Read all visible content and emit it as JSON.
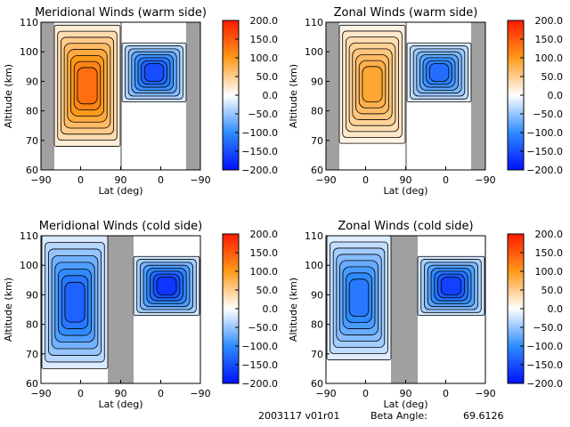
{
  "footer": {
    "date_version": "2003117 v01r01",
    "beta_label": "Beta Angle:",
    "beta_value": "69.6126"
  },
  "colorbar": {
    "ticks": [
      "200.0",
      "150.0",
      "100.0",
      "50.0",
      "0.0",
      "-50.0",
      "-100.0",
      "-150.0",
      "-200.0"
    ],
    "min": -200,
    "max": 200,
    "colors": {
      "max": "#ff1a00",
      "mid_high": "#ff9a1a",
      "zero": "#ffffff",
      "mid_low": "#2f8cff",
      "min": "#0010ff"
    }
  },
  "chart_data": [
    {
      "type": "heatmap",
      "title": "Meridional Winds (warm side)",
      "xlabel": "Lat (deg)",
      "ylabel": "Altitude (km)",
      "xticks": [
        "-90",
        "0",
        "90",
        "0",
        "-90"
      ],
      "yticks": [
        "60",
        "70",
        "80",
        "90",
        "100",
        "110"
      ],
      "ylim": [
        60,
        110
      ],
      "left_panel": {
        "range": "-90 to 90",
        "peak_value": 150,
        "sign": "positive",
        "alt_range": [
          68,
          109
        ]
      },
      "right_panel": {
        "range": "90 to -90",
        "peak_value": -170,
        "sign": "negative",
        "alt_range": [
          83,
          103
        ]
      }
    },
    {
      "type": "heatmap",
      "title": "Zonal Winds (warm side)",
      "xlabel": "Lat (deg)",
      "ylabel": "Altitude (km)",
      "xticks": [
        "-90",
        "0",
        "90",
        "0",
        "-90"
      ],
      "yticks": [
        "60",
        "70",
        "80",
        "90",
        "100",
        "110"
      ],
      "ylim": [
        60,
        110
      ],
      "left_panel": {
        "range": "-90 to 90",
        "peak_value": 100,
        "sign": "positive",
        "alt_range": [
          69,
          109
        ]
      },
      "right_panel": {
        "range": "90 to -90",
        "peak_value": -140,
        "sign": "negative",
        "alt_range": [
          83,
          103
        ]
      }
    },
    {
      "type": "heatmap",
      "title": "Meridional Winds (cold side)",
      "xlabel": "Lat (deg)",
      "ylabel": "Altitude (km)",
      "xticks": [
        "-90",
        "0",
        "90",
        "0",
        "-90"
      ],
      "yticks": [
        "60",
        "70",
        "80",
        "90",
        "100",
        "110"
      ],
      "ylim": [
        60,
        110
      ],
      "left_panel": {
        "range": "-90 to 90",
        "peak_value": -150,
        "sign": "mixed",
        "alt_range": [
          65,
          110
        ]
      },
      "right_panel": {
        "range": "90 to -90",
        "peak_value": -190,
        "sign": "negative",
        "alt_range": [
          83,
          103
        ]
      }
    },
    {
      "type": "heatmap",
      "title": "Zonal Winds (cold side)",
      "xlabel": "Lat (deg)",
      "ylabel": "Altitude (km)",
      "xticks": [
        "-90",
        "0",
        "90",
        "0",
        "-90"
      ],
      "yticks": [
        "60",
        "70",
        "80",
        "90",
        "100",
        "110"
      ],
      "ylim": [
        60,
        110
      ],
      "left_panel": {
        "range": "-90 to 90",
        "peak_value": -130,
        "sign": "mixed",
        "alt_range": [
          68,
          110
        ]
      },
      "right_panel": {
        "range": "90 to -90",
        "peak_value": -180,
        "sign": "mixed",
        "alt_range": [
          83,
          103
        ]
      }
    }
  ]
}
